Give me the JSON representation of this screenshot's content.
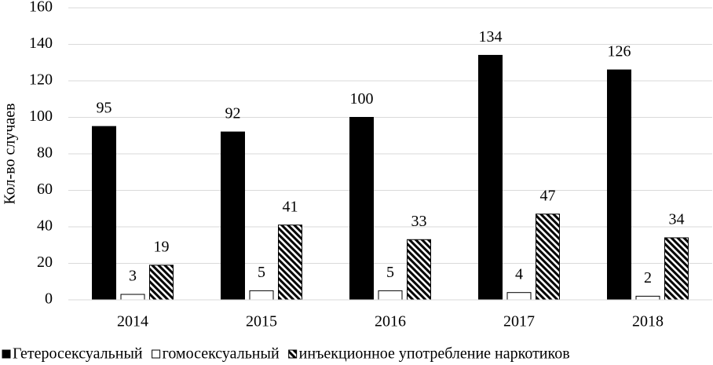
{
  "chart_data": {
    "type": "bar",
    "y_label": "Кол-во случаев",
    "categories": [
      "2014",
      "2015",
      "2016",
      "2017",
      "2018"
    ],
    "series": [
      {
        "name": "Гетеросексуальный",
        "color": "#000000",
        "values": [
          95,
          92,
          100,
          134,
          126
        ]
      },
      {
        "name": "гомосексуальный",
        "color": "#ffffff",
        "values": [
          3,
          5,
          5,
          4,
          2
        ]
      },
      {
        "name": "инъекционное употребление наркотиков",
        "color": "#000000",
        "hatch": true,
        "values": [
          19,
          41,
          33,
          47,
          34
        ]
      }
    ],
    "ylim": [
      0,
      160
    ],
    "yticks": [
      0,
      20,
      40,
      60,
      80,
      100,
      120,
      140,
      160
    ],
    "grid": true,
    "legend": "bottom"
  }
}
